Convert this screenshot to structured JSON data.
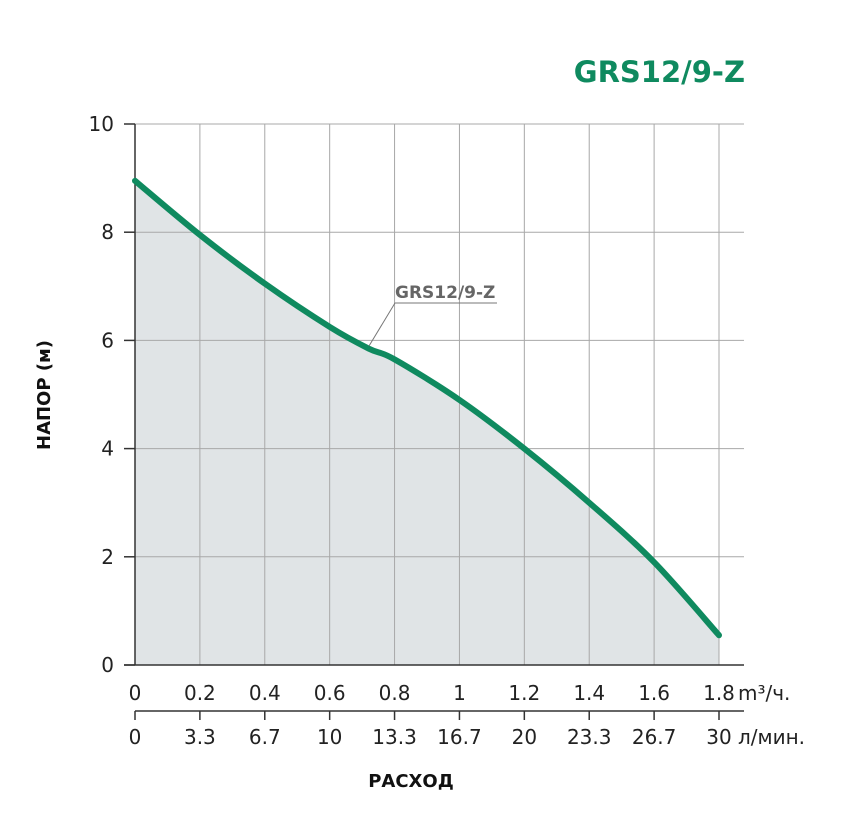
{
  "chart_data": {
    "type": "area",
    "title": "GRS12/9-Z",
    "ylabel": "НАПОР (м)",
    "xlabel": "РАСХОД",
    "ylim": [
      0,
      10
    ],
    "y_ticks": [
      0,
      2,
      4,
      6,
      8,
      10
    ],
    "x_ticks_primary": [
      "0",
      "0.2",
      "0.4",
      "0.6",
      "0.8",
      "1",
      "1.2",
      "1.4",
      "1.6",
      "1.8"
    ],
    "x_unit_primary": "m³/ч.",
    "x_ticks_secondary": [
      "0",
      "3.3",
      "6.7",
      "10",
      "13.3",
      "16.7",
      "20",
      "23.3",
      "26.7",
      "30"
    ],
    "x_unit_secondary": "л/мин.",
    "xlim": [
      0,
      1.8
    ],
    "grid": true,
    "colors": {
      "series": "#0f8a5f",
      "fill": "#e0e4e6",
      "title": "#0f8a5f"
    },
    "series": [
      {
        "name": "GRS12/9-Z",
        "x": [
          0,
          0.2,
          0.4,
          0.6,
          0.72,
          0.8,
          1.0,
          1.2,
          1.4,
          1.6,
          1.8
        ],
        "y": [
          8.95,
          7.95,
          7.05,
          6.25,
          5.85,
          5.65,
          4.9,
          4.0,
          3.0,
          1.9,
          0.55
        ]
      }
    ]
  }
}
